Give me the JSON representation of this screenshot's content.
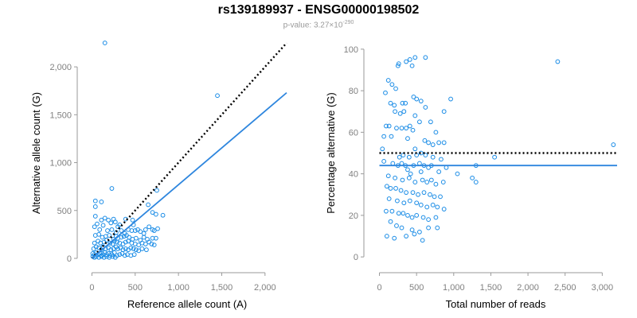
{
  "header": {
    "title": "rs139189937 - ENSG00000198502",
    "subtitle_prefix": "p-value: 3.27×10",
    "subtitle_exponent": "-290"
  },
  "colors": {
    "points": "#1a8ce6",
    "fit": "#2e86de",
    "reference": "#000000",
    "axis": "#9a9a9a"
  },
  "chart_data": [
    {
      "type": "scatter",
      "title": "",
      "xlabel": "Reference allele count (A)",
      "ylabel": "Alternative allele count (G)",
      "xlim": [
        -50,
        2250
      ],
      "ylim": [
        -50,
        2250
      ],
      "xticks": [
        0,
        500,
        1000,
        1500,
        2000
      ],
      "xtick_labels": [
        "0",
        "500",
        "1,000",
        "1,500",
        "2,000"
      ],
      "yticks": [
        0,
        500,
        1000,
        1500,
        2000
      ],
      "ytick_labels": [
        "0",
        "500",
        "1,000",
        "1,500",
        "2,000"
      ],
      "reference_line": {
        "style": "dotted",
        "x": [
          0,
          2250
        ],
        "y": [
          0,
          2250
        ]
      },
      "fit_line": {
        "style": "solid",
        "x": [
          0,
          2250
        ],
        "y": [
          0,
          1730
        ]
      },
      "points": [
        [
          150,
          2250
        ],
        [
          1450,
          1700
        ],
        [
          750,
          710
        ],
        [
          230,
          730
        ],
        [
          40,
          600
        ],
        [
          110,
          590
        ],
        [
          40,
          540
        ],
        [
          40,
          440
        ],
        [
          150,
          420
        ],
        [
          190,
          400
        ],
        [
          110,
          400
        ],
        [
          220,
          370
        ],
        [
          60,
          360
        ],
        [
          130,
          345
        ],
        [
          270,
          380
        ],
        [
          320,
          350
        ],
        [
          390,
          410
        ],
        [
          250,
          410
        ],
        [
          470,
          400
        ],
        [
          480,
          350
        ],
        [
          700,
          480
        ],
        [
          740,
          460
        ],
        [
          820,
          450
        ],
        [
          650,
          560
        ],
        [
          30,
          330
        ],
        [
          90,
          300
        ],
        [
          180,
          290
        ],
        [
          230,
          300
        ],
        [
          280,
          270
        ],
        [
          300,
          330
        ],
        [
          340,
          290
        ],
        [
          380,
          260
        ],
        [
          420,
          300
        ],
        [
          460,
          290
        ],
        [
          500,
          290
        ],
        [
          530,
          300
        ],
        [
          560,
          280
        ],
        [
          600,
          260
        ],
        [
          620,
          300
        ],
        [
          660,
          330
        ],
        [
          700,
          300
        ],
        [
          720,
          290
        ],
        [
          760,
          310
        ],
        [
          40,
          240
        ],
        [
          80,
          250
        ],
        [
          120,
          220
        ],
        [
          160,
          230
        ],
        [
          200,
          240
        ],
        [
          250,
          200
        ],
        [
          280,
          230
        ],
        [
          300,
          210
        ],
        [
          340,
          220
        ],
        [
          370,
          230
        ],
        [
          400,
          240
        ],
        [
          430,
          220
        ],
        [
          470,
          200
        ],
        [
          510,
          210
        ],
        [
          560,
          190
        ],
        [
          600,
          220
        ],
        [
          640,
          200
        ],
        [
          700,
          210
        ],
        [
          740,
          210
        ],
        [
          30,
          160
        ],
        [
          70,
          180
        ],
        [
          100,
          160
        ],
        [
          140,
          170
        ],
        [
          170,
          190
        ],
        [
          210,
          160
        ],
        [
          240,
          150
        ],
        [
          260,
          180
        ],
        [
          290,
          170
        ],
        [
          320,
          160
        ],
        [
          360,
          150
        ],
        [
          390,
          170
        ],
        [
          420,
          180
        ],
        [
          460,
          160
        ],
        [
          500,
          150
        ],
        [
          540,
          140
        ],
        [
          580,
          160
        ],
        [
          620,
          150
        ],
        [
          660,
          170
        ],
        [
          690,
          150
        ],
        [
          720,
          140
        ],
        [
          20,
          100
        ],
        [
          50,
          120
        ],
        [
          80,
          110
        ],
        [
          110,
          90
        ],
        [
          130,
          120
        ],
        [
          160,
          100
        ],
        [
          190,
          110
        ],
        [
          220,
          90
        ],
        [
          250,
          100
        ],
        [
          280,
          120
        ],
        [
          300,
          100
        ],
        [
          330,
          110
        ],
        [
          360,
          90
        ],
        [
          390,
          100
        ],
        [
          420,
          90
        ],
        [
          450,
          110
        ],
        [
          480,
          100
        ],
        [
          510,
          90
        ],
        [
          540,
          80
        ],
        [
          580,
          100
        ],
        [
          630,
          90
        ],
        [
          10,
          50
        ],
        [
          30,
          40
        ],
        [
          50,
          60
        ],
        [
          70,
          40
        ],
        [
          90,
          50
        ],
        [
          110,
          30
        ],
        [
          130,
          40
        ],
        [
          150,
          60
        ],
        [
          170,
          40
        ],
        [
          190,
          50
        ],
        [
          210,
          30
        ],
        [
          230,
          40
        ],
        [
          260,
          60
        ],
        [
          290,
          30
        ],
        [
          320,
          40
        ],
        [
          350,
          50
        ],
        [
          380,
          30
        ],
        [
          410,
          40
        ],
        [
          450,
          30
        ],
        [
          490,
          40
        ],
        [
          10,
          20
        ],
        [
          30,
          10
        ],
        [
          50,
          20
        ],
        [
          80,
          10
        ],
        [
          110,
          20
        ],
        [
          140,
          10
        ],
        [
          170,
          20
        ],
        [
          200,
          10
        ],
        [
          240,
          20
        ],
        [
          270,
          10
        ]
      ]
    },
    {
      "type": "scatter",
      "title": "",
      "xlabel": "Total number of reads",
      "ylabel": "Percentage alternative (G)",
      "xlim": [
        -70,
        3200
      ],
      "ylim": [
        -3,
        103
      ],
      "xticks": [
        0,
        500,
        1000,
        1500,
        2000,
        2500,
        3000
      ],
      "xtick_labels": [
        "0",
        "500",
        "1,000",
        "1,500",
        "2,000",
        "2,500",
        "3,000"
      ],
      "yticks": [
        0,
        20,
        40,
        60,
        80,
        100
      ],
      "ytick_labels": [
        "0",
        "20",
        "40",
        "60",
        "80",
        "100"
      ],
      "reference_line": {
        "style": "dotted",
        "x": [
          0,
          3200
        ],
        "y": [
          50,
          50
        ]
      },
      "fit_line": {
        "style": "solid",
        "x": [
          0,
          3200
        ],
        "y": [
          44,
          44
        ]
      },
      "points": [
        [
          2400,
          94
        ],
        [
          3150,
          54
        ],
        [
          1550,
          48
        ],
        [
          1300,
          44
        ],
        [
          1300,
          36
        ],
        [
          1250,
          38
        ],
        [
          1050,
          40
        ],
        [
          960,
          76
        ],
        [
          870,
          70
        ],
        [
          620,
          96
        ],
        [
          480,
          96
        ],
        [
          410,
          95
        ],
        [
          360,
          94
        ],
        [
          440,
          92
        ],
        [
          260,
          93
        ],
        [
          250,
          92
        ],
        [
          120,
          85
        ],
        [
          170,
          83
        ],
        [
          220,
          81
        ],
        [
          80,
          79
        ],
        [
          150,
          74
        ],
        [
          200,
          73
        ],
        [
          310,
          74
        ],
        [
          350,
          74
        ],
        [
          460,
          77
        ],
        [
          500,
          76
        ],
        [
          560,
          75
        ],
        [
          620,
          72
        ],
        [
          690,
          65
        ],
        [
          760,
          60
        ],
        [
          210,
          70
        ],
        [
          280,
          69
        ],
        [
          330,
          70
        ],
        [
          480,
          68
        ],
        [
          540,
          65
        ],
        [
          410,
          63
        ],
        [
          90,
          63
        ],
        [
          130,
          63
        ],
        [
          230,
          62
        ],
        [
          300,
          62
        ],
        [
          360,
          62
        ],
        [
          450,
          61
        ],
        [
          160,
          58
        ],
        [
          60,
          58
        ],
        [
          380,
          57
        ],
        [
          610,
          56
        ],
        [
          660,
          55
        ],
        [
          720,
          54
        ],
        [
          800,
          55
        ],
        [
          870,
          55
        ],
        [
          480,
          52
        ],
        [
          40,
          52
        ],
        [
          270,
          48
        ],
        [
          320,
          49
        ],
        [
          400,
          48
        ],
        [
          500,
          49
        ],
        [
          560,
          50
        ],
        [
          620,
          49
        ],
        [
          720,
          48
        ],
        [
          830,
          47
        ],
        [
          60,
          46
        ],
        [
          180,
          45
        ],
        [
          250,
          44
        ],
        [
          300,
          45
        ],
        [
          350,
          44
        ],
        [
          460,
          44
        ],
        [
          540,
          45
        ],
        [
          600,
          44
        ],
        [
          660,
          43
        ],
        [
          700,
          44
        ],
        [
          900,
          43
        ],
        [
          380,
          42
        ],
        [
          420,
          40
        ],
        [
          560,
          41
        ],
        [
          800,
          41
        ],
        [
          120,
          39
        ],
        [
          210,
          38
        ],
        [
          310,
          37
        ],
        [
          400,
          38
        ],
        [
          480,
          36
        ],
        [
          580,
          37
        ],
        [
          640,
          36
        ],
        [
          700,
          37
        ],
        [
          760,
          35
        ],
        [
          860,
          36
        ],
        [
          100,
          34
        ],
        [
          150,
          33
        ],
        [
          220,
          33
        ],
        [
          290,
          32
        ],
        [
          360,
          31
        ],
        [
          450,
          31
        ],
        [
          520,
          30
        ],
        [
          600,
          31
        ],
        [
          680,
          30
        ],
        [
          740,
          29
        ],
        [
          820,
          29
        ],
        [
          130,
          28
        ],
        [
          240,
          27
        ],
        [
          330,
          26
        ],
        [
          410,
          27
        ],
        [
          500,
          26
        ],
        [
          560,
          25
        ],
        [
          640,
          24
        ],
        [
          720,
          25
        ],
        [
          780,
          24
        ],
        [
          870,
          23
        ],
        [
          90,
          22
        ],
        [
          170,
          22
        ],
        [
          260,
          21
        ],
        [
          320,
          21
        ],
        [
          380,
          20
        ],
        [
          440,
          19
        ],
        [
          500,
          20
        ],
        [
          590,
          19
        ],
        [
          660,
          18
        ],
        [
          760,
          19
        ],
        [
          150,
          17
        ],
        [
          230,
          15
        ],
        [
          300,
          14
        ],
        [
          440,
          13
        ],
        [
          540,
          12
        ],
        [
          660,
          14
        ],
        [
          780,
          14
        ],
        [
          100,
          10
        ],
        [
          200,
          9
        ],
        [
          360,
          10
        ],
        [
          470,
          11
        ],
        [
          580,
          8
        ]
      ]
    }
  ]
}
